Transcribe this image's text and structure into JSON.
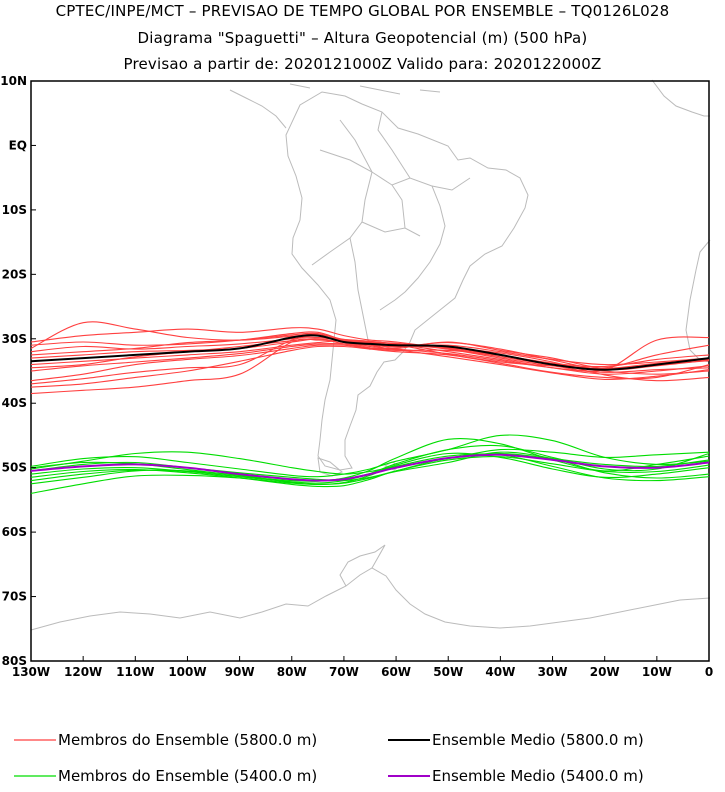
{
  "titles": {
    "line1": "CPTEC/INPE/MCT – PREVISAO DE TEMPO GLOBAL POR ENSEMBLE – TQ0126L028",
    "line2": "Diagrama \"Spaguetti\" – Altura Geopotencial (m) (500 hPa)",
    "line3": "Previsao a partir de: 2020121000Z   Valido para: 2020122000Z"
  },
  "chart_data": {
    "type": "line",
    "xlim": [
      -130,
      0
    ],
    "ylim": [
      -80,
      10
    ],
    "x_ticks": [
      {
        "value": -130,
        "label": "130W"
      },
      {
        "value": -120,
        "label": "120W"
      },
      {
        "value": -110,
        "label": "110W"
      },
      {
        "value": -100,
        "label": "100W"
      },
      {
        "value": -90,
        "label": "90W"
      },
      {
        "value": -80,
        "label": "80W"
      },
      {
        "value": -70,
        "label": "70W"
      },
      {
        "value": -60,
        "label": "60W"
      },
      {
        "value": -50,
        "label": "50W"
      },
      {
        "value": -40,
        "label": "40W"
      },
      {
        "value": -30,
        "label": "30W"
      },
      {
        "value": -20,
        "label": "20W"
      },
      {
        "value": -10,
        "label": "10W"
      },
      {
        "value": 0,
        "label": "0"
      }
    ],
    "y_ticks": [
      {
        "value": 10,
        "label": "10N"
      },
      {
        "value": 0,
        "label": "EQ"
      },
      {
        "value": -10,
        "label": "10S"
      },
      {
        "value": -20,
        "label": "20S"
      },
      {
        "value": -30,
        "label": "30S"
      },
      {
        "value": -40,
        "label": "40S"
      },
      {
        "value": -50,
        "label": "50S"
      },
      {
        "value": -60,
        "label": "60S"
      },
      {
        "value": -70,
        "label": "70S"
      },
      {
        "value": -80,
        "label": "80S"
      }
    ],
    "grid": false,
    "colors": {
      "members_5800": "#ff4040",
      "mean_5800": "#000000",
      "members_5400": "#00dd00",
      "mean_5400": "#a000c8",
      "coast": "#bbbbbb"
    },
    "x_nodes": [
      -130,
      -120,
      -110,
      -100,
      -90,
      -80,
      -75,
      -70,
      -65,
      -60,
      -50,
      -40,
      -30,
      -20,
      -10,
      0
    ],
    "series": [
      {
        "group": "members_5800",
        "lat": [
          -31,
          -30.5,
          -31,
          -30.8,
          -30.2,
          -29.2,
          -29,
          -30.2,
          -30.6,
          -30.7,
          -31.5,
          -32.5,
          -33.8,
          -34.3,
          -33.2,
          -32.5
        ]
      },
      {
        "group": "members_5800",
        "lat": [
          -32,
          -31.2,
          -31.6,
          -31.2,
          -30.8,
          -30,
          -29.5,
          -30.6,
          -31,
          -31.2,
          -31,
          -32,
          -33.2,
          -34,
          -33.6,
          -33
        ]
      },
      {
        "group": "members_5800",
        "lat": [
          -33,
          -32.5,
          -32,
          -31.8,
          -31.5,
          -30.5,
          -30,
          -30.2,
          -30.5,
          -30.8,
          -32,
          -33.2,
          -34.5,
          -35.5,
          -35,
          -34.2
        ]
      },
      {
        "group": "members_5800",
        "lat": [
          -34,
          -33.5,
          -33,
          -32.5,
          -32,
          -31,
          -30.6,
          -30.3,
          -31,
          -31.5,
          -30.5,
          -31.8,
          -33,
          -34.6,
          -34,
          -33.4
        ]
      },
      {
        "group": "members_5800",
        "lat": [
          -35,
          -34.2,
          -33.6,
          -33,
          -32.3,
          -31.2,
          -30.8,
          -30.8,
          -31.2,
          -31.6,
          -32.3,
          -33.4,
          -34.5,
          -35.2,
          -34.8,
          -34.5
        ]
      },
      {
        "group": "members_5800",
        "lat": [
          -36.5,
          -35.5,
          -34,
          -33.2,
          -32.6,
          -31.5,
          -31,
          -31,
          -31.5,
          -31.8,
          -31.8,
          -32.6,
          -33.8,
          -35,
          -35.5,
          -35
        ]
      },
      {
        "group": "members_5800",
        "lat": [
          -37.5,
          -37,
          -36,
          -35,
          -33.5,
          -31.8,
          -31.2,
          -31.2,
          -31.6,
          -32,
          -32.5,
          -33.8,
          -35.2,
          -36,
          -36,
          -34
        ]
      },
      {
        "group": "members_5800",
        "lat": [
          -38.5,
          -38,
          -37.5,
          -36.5,
          -35.5,
          -30.5,
          -30.2,
          -30.4,
          -30.6,
          -31,
          -31.4,
          -32.2,
          -33.6,
          -35.6,
          -36.5,
          -36
        ]
      },
      {
        "group": "members_5800",
        "lat": [
          -30.5,
          -29.5,
          -29,
          -28.5,
          -29,
          -28.3,
          -28.5,
          -29.5,
          -30.2,
          -30.5,
          -31.6,
          -33,
          -34.2,
          -34.8,
          -30.2,
          -29.8
        ]
      },
      {
        "group": "members_5800",
        "lat": [
          -31.5,
          -27.5,
          -28.5,
          -29.8,
          -30.2,
          -29.6,
          -29.3,
          -30.1,
          -30.4,
          -30.9,
          -32.4,
          -33.6,
          -34.2,
          -34.5,
          -32.5,
          -31
        ]
      },
      {
        "group": "members_5800",
        "lat": [
          -34.5,
          -34,
          -32.8,
          -32,
          -31.2,
          -30.3,
          -30,
          -30.8,
          -31.4,
          -31.7,
          -32.8,
          -34,
          -35.3,
          -36.3,
          -35.8,
          -34.8
        ]
      },
      {
        "group": "members_5800",
        "lat": [
          -32.5,
          -32,
          -31.5,
          -30.6,
          -30.2,
          -29.4,
          -29.2,
          -30.3,
          -30.8,
          -31.3,
          -30.6,
          -31.6,
          -33.3,
          -34.8,
          -34.2,
          -33.3
        ]
      },
      {
        "group": "members_5800",
        "lat": [
          -37,
          -36.2,
          -35.2,
          -34.5,
          -34,
          -30.2,
          -29.8,
          -30.1,
          -30.4,
          -30.8,
          -31.6,
          -32.8,
          -34,
          -34.6,
          -33.8,
          -33.2
        ]
      },
      {
        "group": "mean_5800",
        "lat": [
          -33.5,
          -33,
          -32.5,
          -32,
          -31.5,
          -29.8,
          -29.5,
          -30.5,
          -30.8,
          -31,
          -31.2,
          -32.5,
          -34,
          -34.8,
          -34,
          -33
        ]
      },
      {
        "group": "members_5400",
        "lat": [
          -50.5,
          -49.5,
          -49.2,
          -50,
          -50.8,
          -51.5,
          -51.8,
          -52,
          -51.5,
          -50.5,
          -48.5,
          -47.8,
          -48.6,
          -49.5,
          -49.8,
          -48.8
        ]
      },
      {
        "group": "members_5400",
        "lat": [
          -51,
          -50.2,
          -50,
          -50.6,
          -51.4,
          -52,
          -52.1,
          -51.6,
          -50.4,
          -48.5,
          -45.6,
          -46.3,
          -48.8,
          -50.5,
          -49.5,
          -48.2
        ]
      },
      {
        "group": "members_5400",
        "lat": [
          -49.8,
          -48.6,
          -48.3,
          -49.2,
          -50.2,
          -51.2,
          -51.4,
          -51,
          -50.2,
          -49,
          -47.2,
          -45,
          -45.8,
          -48.4,
          -49.5,
          -49
        ]
      },
      {
        "group": "members_5400",
        "lat": [
          -52.5,
          -51.5,
          -50.5,
          -50.5,
          -51.2,
          -52.3,
          -52.6,
          -52.4,
          -51.6,
          -50.6,
          -49.2,
          -47.6,
          -48.6,
          -50.8,
          -51.6,
          -51
        ]
      },
      {
        "group": "members_5400",
        "lat": [
          -54,
          -52.5,
          -51.3,
          -51.2,
          -51.6,
          -52.4,
          -52.6,
          -52.3,
          -51.2,
          -49.6,
          -47.8,
          -48.4,
          -50.2,
          -51.5,
          -51,
          -50
        ]
      },
      {
        "group": "members_5400",
        "lat": [
          -50.2,
          -49,
          -47.8,
          -47.6,
          -48.6,
          -50,
          -50.6,
          -51,
          -50.6,
          -49.8,
          -48.6,
          -47.2,
          -47.6,
          -48.4,
          -48,
          -47.6
        ]
      },
      {
        "group": "members_5400",
        "lat": [
          -51.5,
          -50.6,
          -50.3,
          -50.8,
          -51.6,
          -52.6,
          -52.9,
          -52.8,
          -51.8,
          -50.5,
          -48.8,
          -48.3,
          -49.4,
          -50.6,
          -50.6,
          -49.6
        ]
      },
      {
        "group": "members_5400",
        "lat": [
          -50,
          -49.2,
          -49.4,
          -50.3,
          -51.2,
          -51.8,
          -52,
          -51.7,
          -50.9,
          -49.4,
          -47.2,
          -46.6,
          -48.4,
          -50.2,
          -50.2,
          -47.8
        ]
      },
      {
        "group": "members_5400",
        "lat": [
          -52,
          -51,
          -50.4,
          -50.6,
          -51.4,
          -52.2,
          -52.4,
          -52,
          -51,
          -49.8,
          -48.2,
          -48,
          -49.8,
          -51.6,
          -52,
          -51.4
        ]
      },
      {
        "group": "mean_5400",
        "lat": [
          -50.5,
          -49.8,
          -49.5,
          -50,
          -51,
          -51.8,
          -52,
          -51.8,
          -51,
          -50,
          -48.5,
          -48,
          -48.8,
          -49.8,
          -50,
          -49.2
        ]
      }
    ],
    "legend": [
      {
        "key": "members_5800",
        "label": "Membros do Ensemble (5800.0 m)"
      },
      {
        "key": "mean_5800",
        "label": "Ensemble Medio (5800.0 m)"
      },
      {
        "key": "members_5400",
        "label": "Membros do Ensemble (5400.0 m)"
      },
      {
        "key": "mean_5400",
        "label": "Ensemble Medio (5400.0 m)"
      }
    ]
  }
}
